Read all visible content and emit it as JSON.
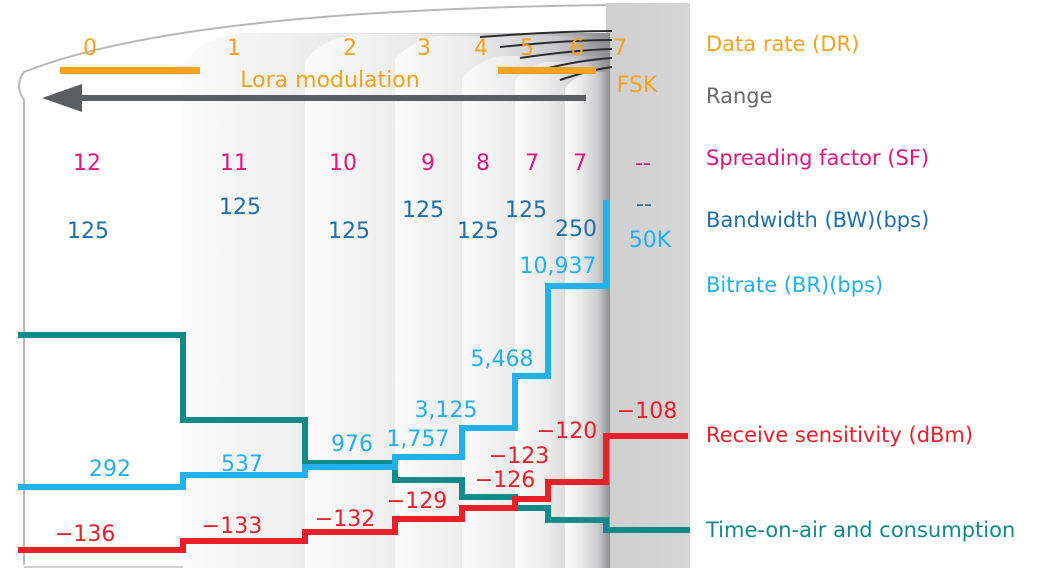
{
  "colors": {
    "orange": "#f5a21d",
    "magenta": "#e5157f",
    "darkblue": "#1f6fad",
    "lightblue": "#22b1ec",
    "red": "#e8202a",
    "teal": "#118a8a",
    "gray": "#6a6a6a",
    "arrow": "#5a5d62"
  },
  "columns": [
    {
      "dr": "0",
      "sf": "12",
      "bw": "125",
      "bitrate": "292",
      "sensitivity": "−136"
    },
    {
      "dr": "1",
      "sf": "11",
      "bw": "125",
      "bitrate": "537",
      "sensitivity": "−133"
    },
    {
      "dr": "2",
      "sf": "10",
      "bw": "125",
      "bitrate": "976",
      "sensitivity": "−132"
    },
    {
      "dr": "3",
      "sf": "9",
      "bw": "125",
      "bitrate": "1,757",
      "sensitivity": "−129"
    },
    {
      "dr": "4",
      "sf": "8",
      "bw": "125",
      "bitrate": "3,125",
      "sensitivity": "−126"
    },
    {
      "dr": "5",
      "sf": "7",
      "bw": "125",
      "bitrate": "5,468",
      "sensitivity": "−123"
    },
    {
      "dr": "6",
      "sf": "7",
      "bw": "250",
      "bitrate": "10,937",
      "sensitivity": "−120"
    },
    {
      "dr": "7",
      "sf": "--",
      "bw": "--",
      "bitrate": "50K",
      "sensitivity": "−108"
    }
  ],
  "labels": {
    "lora": "Lora modulation",
    "fsk": "FSK"
  },
  "legend": {
    "dr": "Data rate (DR)",
    "range": "Range",
    "sf": "Spreading factor (SF)",
    "bw": "Bandwidth (BW)(bps)",
    "br": "Bitrate (BR)(bps)",
    "rs": "Receive sensitivity (dBm)",
    "toa": "Time-on-air and consumption"
  }
}
